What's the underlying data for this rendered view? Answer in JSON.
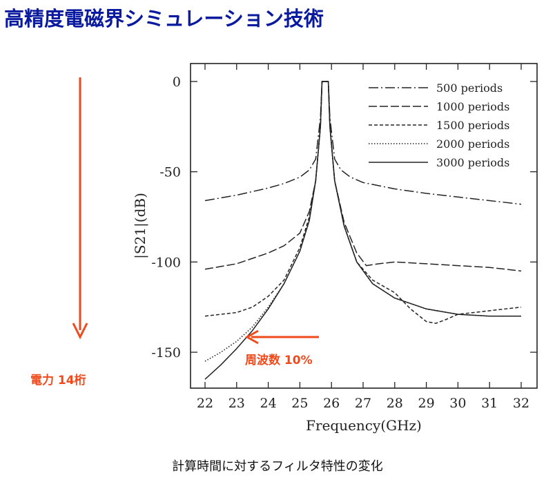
{
  "slide": {
    "title": "高精度電磁界シミュレーション技術",
    "side_label": "電力 14桁",
    "caption": "計算時間に対するフィルタ特性の変化"
  },
  "colors": {
    "title": "#0a1a9e",
    "accent": "#f04a1c",
    "curve": "#222222"
  },
  "chart_data": {
    "type": "line",
    "xlabel": "Frequency(GHz)",
    "ylabel": "|S21|(dB)",
    "xlim": [
      22,
      32
    ],
    "ylim": [
      -170,
      5
    ],
    "xticks": [
      22,
      23,
      24,
      25,
      26,
      27,
      28,
      29,
      30,
      31,
      32
    ],
    "yticks": [
      0,
      -50,
      -100,
      -150
    ],
    "legend_position": "top-right",
    "grid": false,
    "series": [
      {
        "name": "500 periods",
        "dash": "dashdot",
        "x": [
          22,
          23,
          24,
          24.5,
          25,
          25.3,
          25.5,
          25.65,
          25.7,
          25.9,
          25.95,
          26.1,
          26.3,
          26.6,
          27,
          28,
          29,
          30,
          31,
          32
        ],
        "y": [
          -66,
          -63,
          -59,
          -56.5,
          -53,
          -49,
          -43,
          -20,
          0,
          0,
          -20,
          -43,
          -49,
          -53,
          -56,
          -59.5,
          -62,
          -64,
          -66,
          -68
        ]
      },
      {
        "name": "1000 periods",
        "dash": "longdash",
        "x": [
          22,
          23,
          24,
          24.5,
          25,
          25.3,
          25.5,
          25.65,
          25.7,
          25.9,
          25.95,
          26.1,
          26.4,
          26.8,
          27.1,
          27.5,
          28,
          29,
          30,
          31,
          32
        ],
        "y": [
          -104,
          -101,
          -95,
          -91,
          -84,
          -72,
          -55,
          -25,
          0,
          0,
          -25,
          -55,
          -78,
          -95,
          -102,
          -101,
          -100,
          -101,
          -102,
          -103,
          -105
        ]
      },
      {
        "name": "1500 periods",
        "dash": "dashed",
        "x": [
          22,
          23,
          23.5,
          24,
          24.5,
          25,
          25.3,
          25.5,
          25.65,
          25.7,
          25.9,
          25.95,
          26.1,
          26.4,
          26.8,
          27.3,
          28,
          28.5,
          29,
          29.3,
          29.6,
          30,
          31,
          32
        ],
        "y": [
          -130,
          -128,
          -125,
          -119,
          -110,
          -92,
          -75,
          -55,
          -25,
          0,
          0,
          -25,
          -55,
          -80,
          -100,
          -110,
          -117,
          -126,
          -133,
          -134,
          -132,
          -129,
          -127,
          -125
        ]
      },
      {
        "name": "2000 periods",
        "dash": "dotted",
        "x": [
          22,
          22.5,
          23,
          23.5,
          24,
          24.5,
          25,
          25.3,
          25.5,
          25.65,
          25.7,
          25.9,
          25.95,
          26.1,
          26.4,
          26.8,
          27.3,
          28,
          29,
          30,
          31,
          32
        ],
        "y": [
          -155,
          -150,
          -144,
          -136,
          -125,
          -112,
          -94,
          -77,
          -55,
          -25,
          0,
          0,
          -25,
          -55,
          -80,
          -100,
          -112,
          -120,
          -126,
          -129,
          -130,
          -130
        ]
      },
      {
        "name": "3000 periods",
        "dash": "solid",
        "x": [
          22,
          22.5,
          23,
          23.5,
          24,
          24.5,
          25,
          25.3,
          25.5,
          25.65,
          25.7,
          25.9,
          25.95,
          26.1,
          26.4,
          26.8,
          27.3,
          28,
          29,
          30,
          31,
          32
        ],
        "y": [
          -165,
          -157,
          -148,
          -138,
          -126,
          -112,
          -94,
          -77,
          -55,
          -25,
          0,
          0,
          -25,
          -55,
          -80,
          -100,
          -112,
          -120,
          -126,
          -129,
          -130,
          -130
        ]
      }
    ],
    "annotations": {
      "arrow_label": "周波数 10%"
    }
  }
}
